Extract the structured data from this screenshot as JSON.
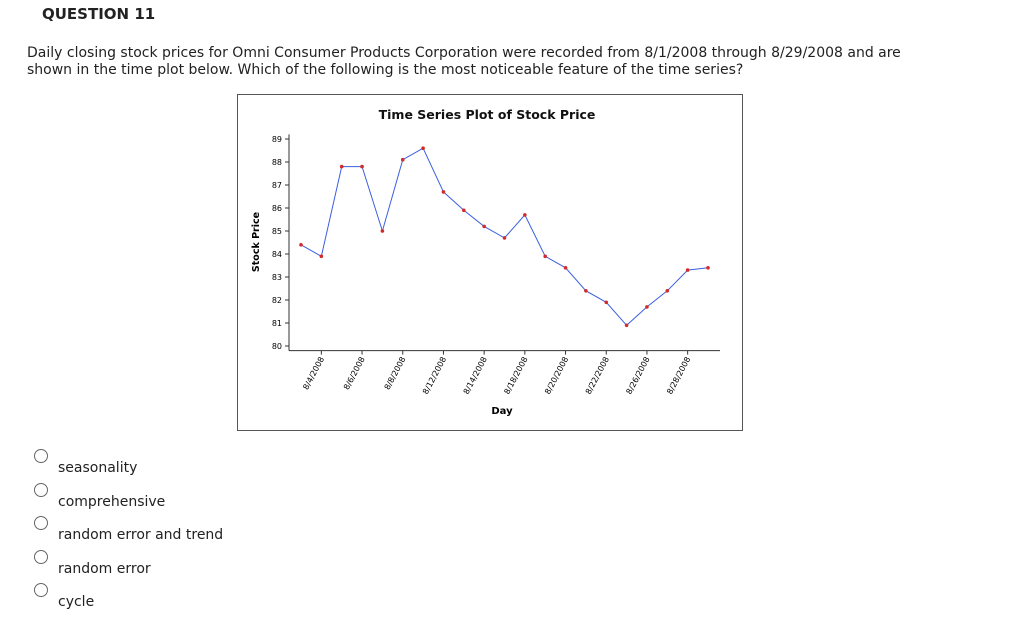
{
  "header": {
    "title": "QUESTION 11"
  },
  "question": {
    "text": "Daily closing stock prices for Omni Consumer Products Corporation were recorded from 8/1/2008 through 8/29/2008 and are shown in the time plot below. Which of the following is the most noticeable feature of the time series?"
  },
  "chart_data": {
    "type": "line",
    "title": "Time Series Plot of Stock Price",
    "x_label": "Day",
    "y_label": "Stock Price",
    "categories": [
      null,
      "8/4/2008",
      null,
      "8/6/2008",
      null,
      "8/8/2008",
      null,
      "8/12/2008",
      null,
      "8/14/2008",
      null,
      "8/18/2008",
      null,
      "8/20/2008",
      null,
      "8/22/2008",
      null,
      "8/26/2008",
      null,
      "8/28/2008",
      null
    ],
    "series": [
      {
        "name": "Stock Price",
        "color": "#3b5fe0",
        "marker_color": "#d42a2a",
        "values": [
          84.4,
          83.9,
          87.8,
          87.8,
          85.0,
          88.1,
          88.6,
          86.7,
          85.9,
          85.2,
          84.7,
          85.7,
          83.9,
          83.4,
          82.4,
          81.9,
          80.9,
          81.7,
          82.4,
          83.3,
          83.4
        ]
      }
    ],
    "ylim": [
      79.8,
      89.2
    ],
    "yticks": [
      80,
      81,
      82,
      83,
      84,
      85,
      86,
      87,
      88,
      89
    ],
    "grid": false
  },
  "options": [
    "seasonality",
    "comprehensive",
    "random error and trend",
    "random error",
    "cycle"
  ]
}
